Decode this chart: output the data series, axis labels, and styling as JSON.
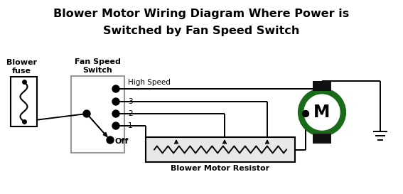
{
  "title_line1": "Blower Motor Wiring Diagram Where Power is",
  "title_line2": "Switched by Fan Speed Switch",
  "title_fontsize": 11.5,
  "title_fontweight": "bold",
  "bg_color": "#ffffff",
  "line_color": "#000000",
  "fuse_label": "Blower\nfuse",
  "switch_label": "Fan Speed\nSwitch",
  "resistor_label": "Blower Motor Resistor",
  "speed_labels": [
    "High Speed",
    "3",
    "2",
    "1"
  ],
  "motor_outer_color": "#1a6b1a",
  "motor_label": "M",
  "motor_cap_color": "#111111",
  "switch_box_color": "#999999",
  "resistor_box_color": "#e8e8e8"
}
